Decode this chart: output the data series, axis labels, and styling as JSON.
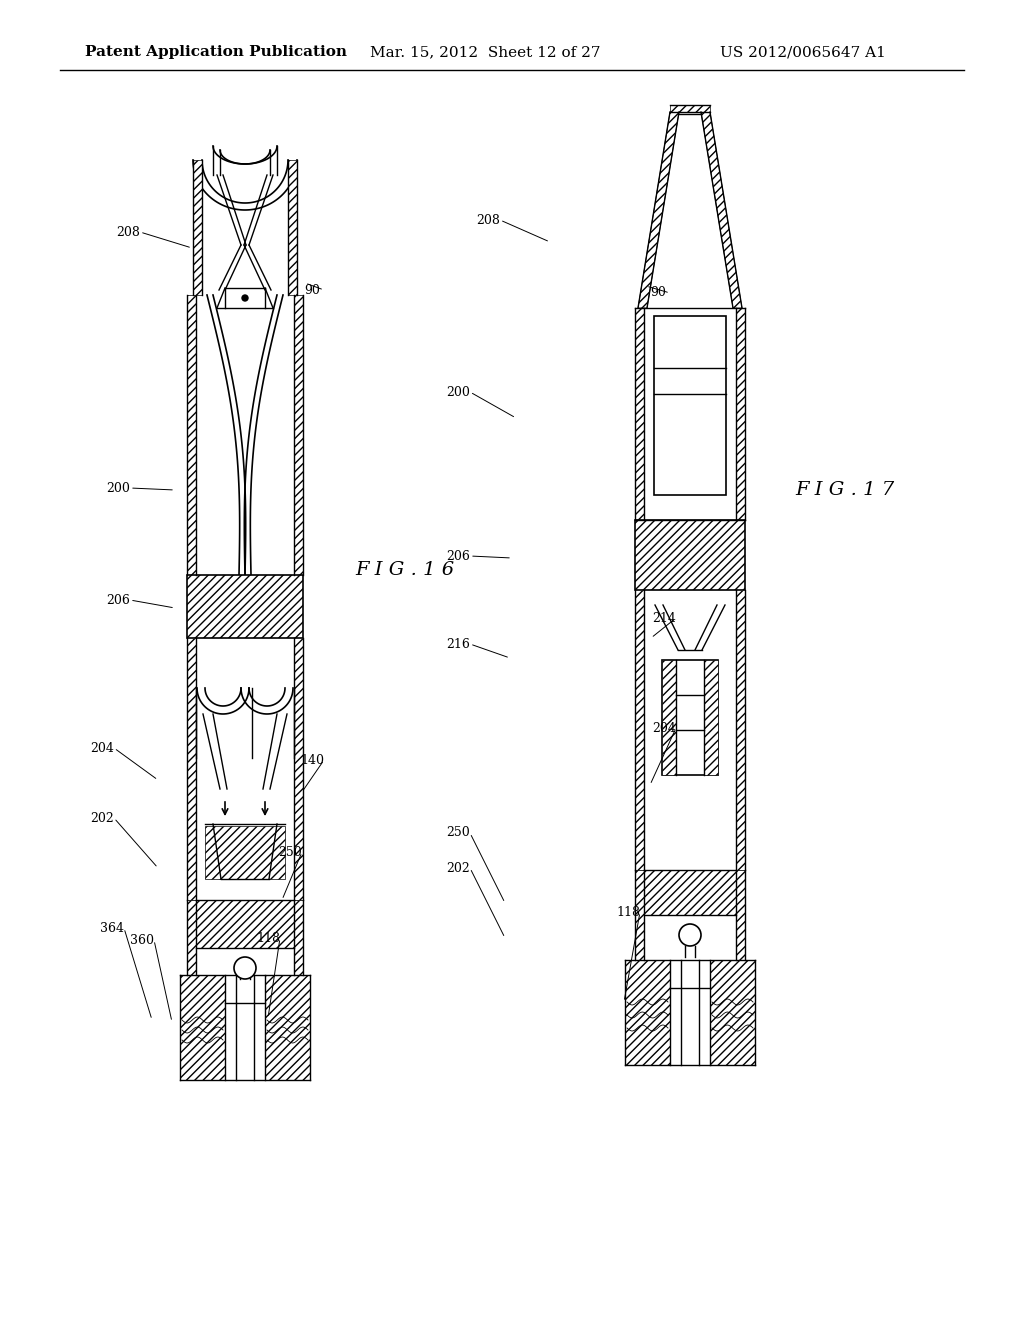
{
  "bg_color": "#ffffff",
  "header_text": "Patent Application Publication",
  "header_date": "Mar. 15, 2012  Sheet 12 of 27",
  "header_patent": "US 2012/0065647 A1",
  "fig16_label": "F I G . 1 6",
  "fig17_label": "F I G . 1 7",
  "line_color": "#000000",
  "line_width": 1.2
}
